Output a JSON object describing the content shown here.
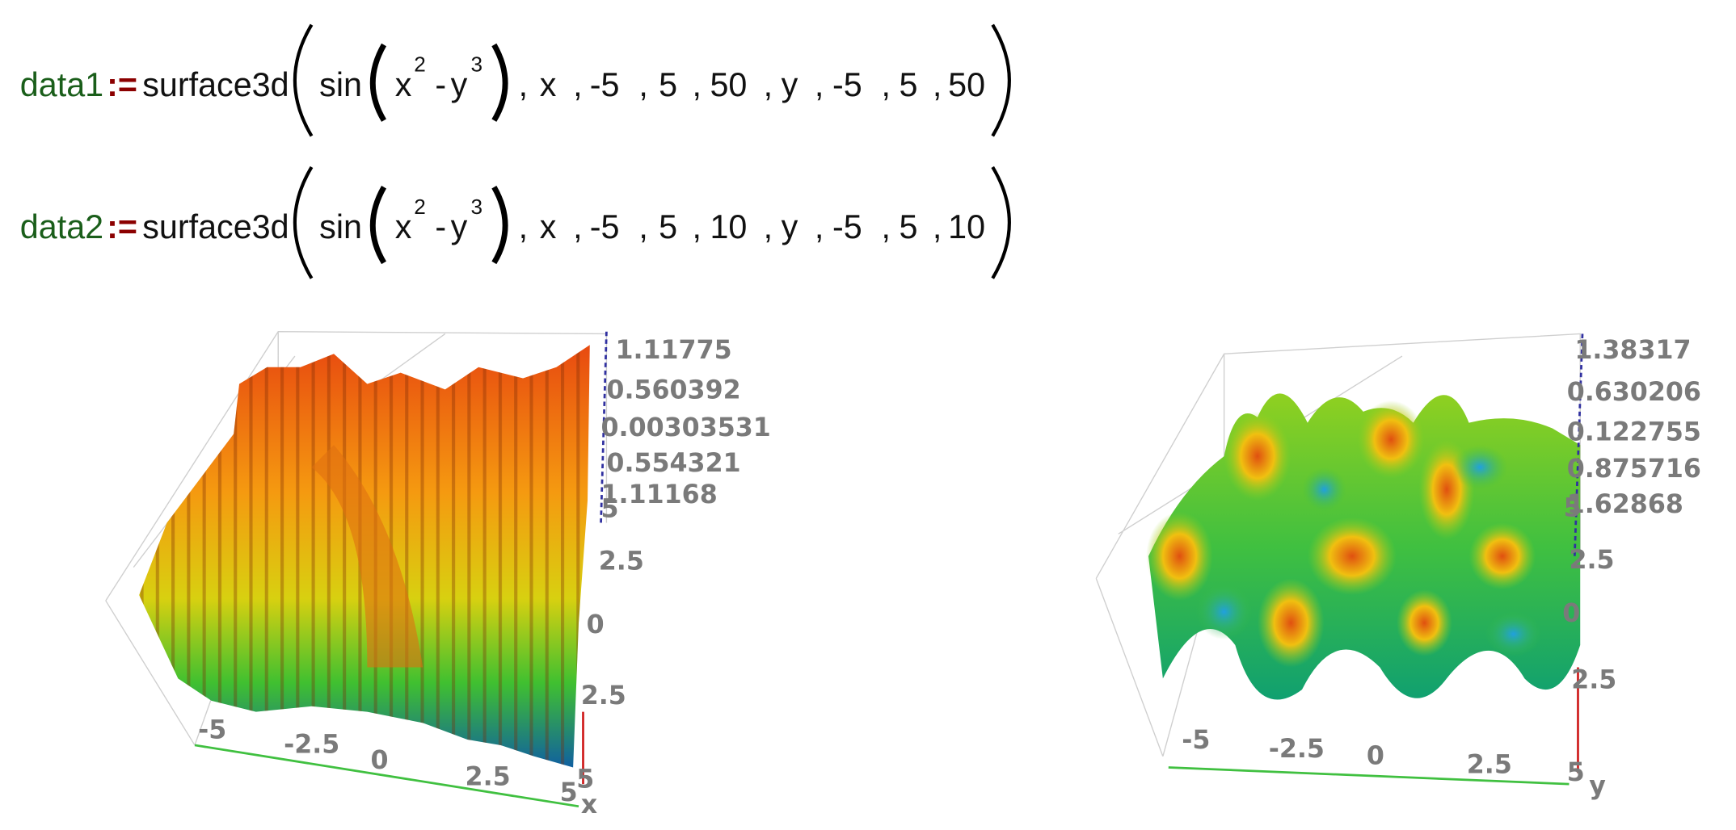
{
  "equations": [
    {
      "name": "data1",
      "assign": ":=",
      "func": "surface3d",
      "inner": "sin",
      "x_base": "x",
      "x_exp": "2",
      "minus": "-",
      "y_base": "y",
      "y_exp": "3",
      "sep": ",",
      "args": [
        "x",
        "-5",
        "5",
        "50",
        "y",
        "-5",
        "5",
        "50"
      ]
    },
    {
      "name": "data2",
      "assign": ":=",
      "func": "surface3d",
      "inner": "sin",
      "x_base": "x",
      "x_exp": "2",
      "minus": "-",
      "y_base": "y",
      "y_exp": "3",
      "sep": ",",
      "args": [
        "x",
        "-5",
        "5",
        "10",
        "y",
        "-5",
        "5",
        "10"
      ]
    }
  ],
  "plots": [
    {
      "z_labels": [
        "1.11775",
        "0.560392",
        "0.00303531",
        "0.554321",
        "1.11168"
      ],
      "side_labels": [
        "5",
        "2.5",
        "0",
        "2.5",
        "5"
      ],
      "bottom_labels": [
        "-5",
        "-2.5",
        "0",
        "2.5",
        "5"
      ],
      "axis_name": "x"
    },
    {
      "z_labels": [
        "1.38317",
        "0.630206",
        "0.122755",
        "0.875716",
        "1.62868"
      ],
      "side_labels": [
        "5",
        "2.5",
        "0",
        "2.5"
      ],
      "bottom_labels": [
        "-5",
        "-2.5",
        "0",
        "2.5",
        "5"
      ],
      "axis_name": "y"
    }
  ]
}
